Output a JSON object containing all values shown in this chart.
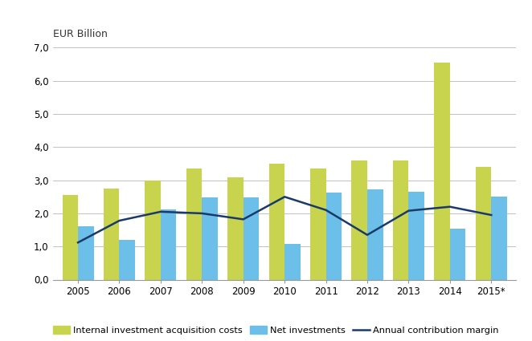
{
  "years": [
    "2005",
    "2006",
    "2007",
    "2008",
    "2009",
    "2010",
    "2011",
    "2012",
    "2013",
    "2014",
    "2015*"
  ],
  "internal_investment": [
    2.55,
    2.75,
    3.0,
    3.35,
    3.1,
    3.5,
    3.35,
    3.6,
    3.6,
    6.55,
    3.4
  ],
  "net_investments": [
    1.62,
    1.2,
    2.12,
    2.48,
    2.48,
    1.08,
    2.62,
    2.72,
    2.65,
    1.55,
    2.5
  ],
  "annual_contribution": [
    1.12,
    1.78,
    2.05,
    2.0,
    1.82,
    2.5,
    2.1,
    1.35,
    2.08,
    2.2,
    1.95
  ],
  "bar_color_green": "#c8d44e",
  "bar_color_blue": "#6bbfe8",
  "line_color": "#1a3a6b",
  "ylabel": "EUR Billion",
  "ylim": [
    0,
    7.0
  ],
  "yticks": [
    0.0,
    1.0,
    2.0,
    3.0,
    4.0,
    5.0,
    6.0,
    7.0
  ],
  "ytick_labels": [
    "0,0",
    "1,0",
    "2,0",
    "3,0",
    "4,0",
    "5,0",
    "6,0",
    "7,0"
  ],
  "legend_labels": [
    "Internal investment acquisition costs",
    "Net investments",
    "Annual contribution margin"
  ],
  "background_color": "#ffffff",
  "grid_color": "#b8b8b8",
  "bar_width": 0.38
}
